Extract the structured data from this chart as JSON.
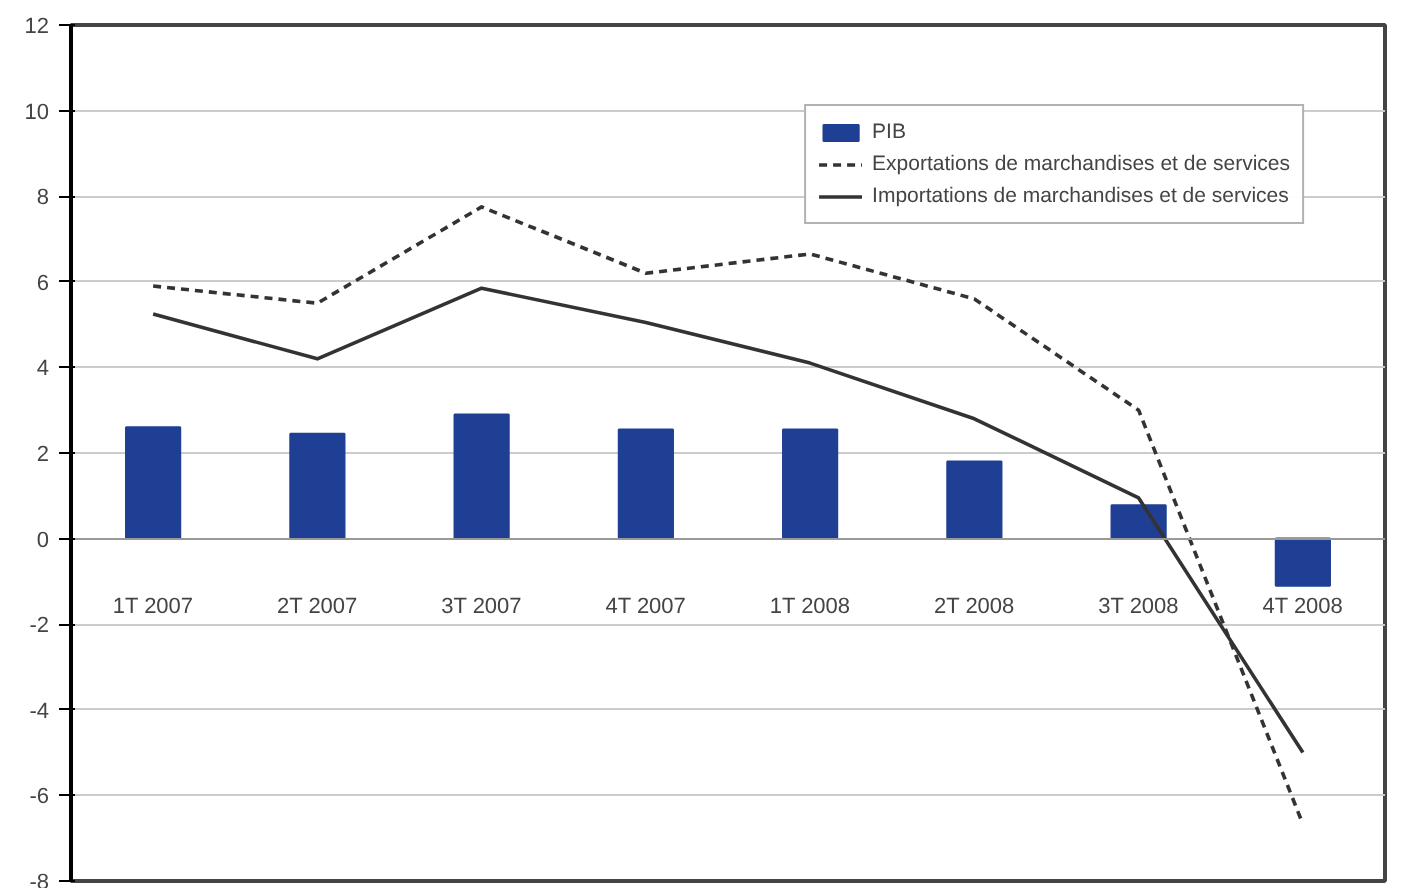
{
  "chart_data": {
    "type": "bar",
    "categories": [
      "1T 2007",
      "2T 2007",
      "3T 2007",
      "4T 2007",
      "1T 2008",
      "2T 2008",
      "3T 2008",
      "4T 2008"
    ],
    "series": [
      {
        "name": "PIB",
        "color": "#1f3f94",
        "values": [
          2.6,
          2.45,
          2.9,
          2.55,
          2.55,
          1.8,
          0.78,
          -1.1
        ]
      },
      {
        "name": "Exportations de marchandises et de services",
        "type": "line",
        "line_style": "dashed",
        "color": "#333333",
        "values": [
          5.9,
          5.5,
          7.75,
          6.2,
          6.65,
          5.6,
          3.0,
          -6.67
        ]
      },
      {
        "name": "Importations de marchandises et de services",
        "type": "line",
        "line_style": "solid",
        "color": "#333333",
        "values": [
          5.25,
          4.2,
          5.85,
          5.05,
          4.1,
          2.8,
          0.95,
          -5.0
        ]
      }
    ],
    "ylim": [
      -8,
      12
    ],
    "yticks": [
      -8,
      -6,
      -4,
      -2,
      0,
      2,
      4,
      6,
      8,
      10,
      12
    ],
    "grid": "y",
    "legend": "top right"
  }
}
